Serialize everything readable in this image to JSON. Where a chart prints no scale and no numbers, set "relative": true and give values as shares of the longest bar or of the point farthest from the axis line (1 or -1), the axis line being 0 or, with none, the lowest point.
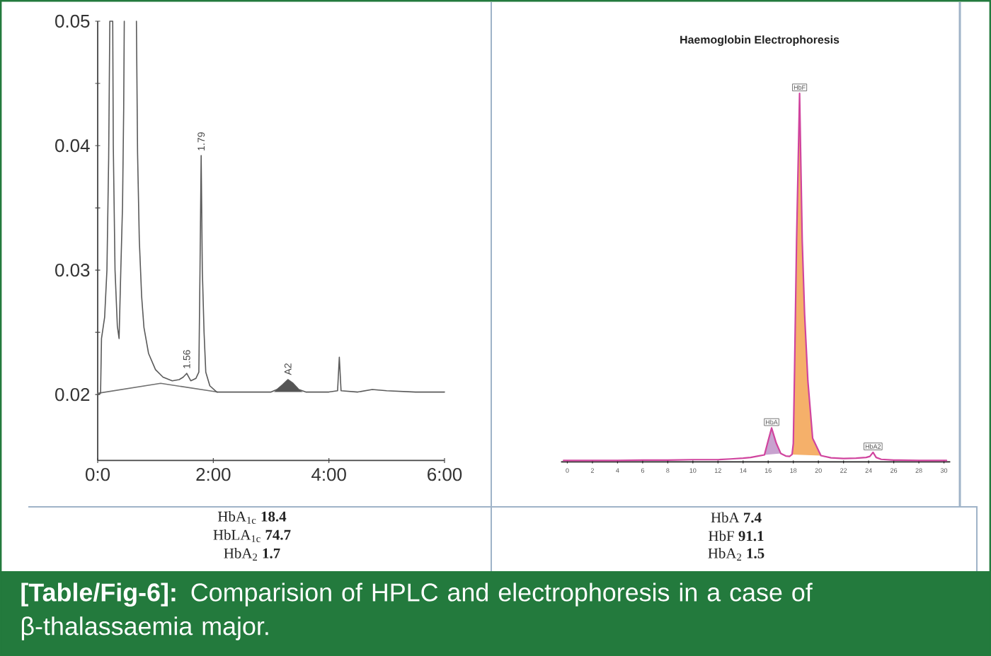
{
  "chart_data": [
    {
      "type": "line",
      "xlim": [
        0,
        6
      ],
      "xticks": [
        {
          "value": 0,
          "label": "0:0"
        },
        {
          "value": 2,
          "label": "2:00"
        },
        {
          "value": 4,
          "label": "4:00"
        },
        {
          "value": 6,
          "label": "6:00"
        }
      ],
      "ylim": [
        0.0147,
        0.05
      ],
      "yticks": [
        0.02,
        {
          "value": 0.025,
          "label": null
        },
        0.03,
        {
          "value": 0.035,
          "label": null
        },
        0.04,
        {
          "value": 0.045,
          "label": null
        },
        0.05
      ],
      "series": [
        {
          "type": "area",
          "color": "#555555",
          "x": [
            3.05,
            3.1,
            3.2,
            3.29,
            3.38,
            3.48,
            3.55
          ],
          "values": [
            0.0202,
            0.0204,
            0.0208,
            0.0212,
            0.0209,
            0.0204,
            0.0202
          ]
        },
        {
          "type": "line",
          "color": "#5a5a5a",
          "x": [
            0.0,
            0.05,
            0.066,
            0.12,
            0.16,
            0.19,
            0.21,
            0.26,
            0.27,
            0.3,
            0.34,
            0.37,
            0.4,
            0.43,
            0.45,
            0.46,
            0.57,
            0.67,
            0.69,
            0.72,
            0.76,
            0.8,
            0.88,
            1.0,
            1.13,
            1.29,
            1.41,
            1.48,
            1.54,
            1.61,
            1.7,
            1.75,
            1.77,
            1.79,
            1.81,
            1.84,
            1.87,
            1.94,
            2.06,
            2.5,
            3.0,
            3.1,
            3.2,
            3.29,
            3.38,
            3.48,
            3.6,
            4.0,
            4.15,
            4.18,
            4.21,
            4.5,
            4.75,
            5.0,
            5.5,
            6.0
          ],
          "values": [
            0.02,
            0.0201,
            0.0245,
            0.0262,
            0.03,
            0.039,
            0.05,
            0.05,
            0.04,
            0.03,
            0.0255,
            0.0245,
            0.03,
            0.0352,
            0.043,
            0.05,
            null,
            0.05,
            0.0394,
            0.0324,
            0.0279,
            0.0254,
            0.0233,
            0.022,
            0.0214,
            0.0211,
            0.0212,
            0.0214,
            0.0217,
            0.0211,
            0.0213,
            0.0218,
            0.03,
            0.0392,
            0.03,
            0.025,
            0.0218,
            0.0207,
            0.0202,
            0.0202,
            0.0202,
            0.0204,
            0.0208,
            0.0212,
            0.0209,
            0.0204,
            0.0202,
            0.0202,
            0.0203,
            0.023,
            0.0203,
            0.0202,
            0.0204,
            0.0203,
            0.0202,
            0.0202
          ]
        },
        {
          "type": "line",
          "color": "#707070",
          "x": [
            0.0,
            1.09,
            2.07
          ],
          "values": [
            0.0201,
            0.0209,
            0.0202
          ]
        }
      ],
      "annotations": [
        {
          "text": "1.56",
          "x": 1.54,
          "y": 0.0217
        },
        {
          "text": "1.79",
          "x": 1.79,
          "y": 0.0392
        },
        {
          "text": "A2",
          "x": 3.29,
          "y": 0.0212
        },
        "HbA$_{1c}$ **18.4**",
        "HbLA$_{1c}$ **74.7**",
        "HbA$_{2}$ **1.7**"
      ]
    },
    {
      "type": "line",
      "title": "Haemoglobin Electrophoresis",
      "relative": true,
      "xlim": [
        -0.5,
        30.5
      ],
      "xticks": [
        0,
        2,
        4,
        6,
        8,
        10,
        12,
        14,
        16,
        18,
        20,
        22,
        24,
        26,
        28,
        30
      ],
      "series": [
        {
          "type": "area",
          "color": "#f5b06a",
          "x": [
            17.9,
            18.0,
            18.1,
            18.26,
            18.5,
            18.71,
            18.9,
            19.16,
            19.54,
            20.2
          ],
          "values": [
            0.02,
            0.05,
            0.25,
            0.6,
            1.0,
            0.6,
            0.4,
            0.22,
            0.064,
            0.017
          ]
        },
        {
          "type": "area",
          "color": "#c8a2cf",
          "x": [
            15.7,
            16.0,
            16.27,
            16.64,
            17.0
          ],
          "values": [
            0.019,
            0.058,
            0.092,
            0.051,
            0.023
          ]
        },
        {
          "type": "line",
          "color": "#d0449e",
          "x": [
            -0.3,
            2,
            4,
            6,
            8,
            10,
            12,
            13,
            14,
            14.6,
            15.2,
            15.7,
            16.0,
            16.27,
            16.64,
            17.0,
            17.4,
            17.7,
            17.9,
            18.0,
            18.1,
            18.26,
            18.5,
            18.71,
            18.9,
            19.16,
            19.54,
            20.2,
            21,
            22,
            23,
            23.8,
            24.1,
            24.35,
            24.6,
            25,
            26,
            28,
            30.2
          ],
          "values": [
            0.004,
            0.004,
            0.004,
            0.005,
            0.005,
            0.006,
            0.006,
            0.008,
            0.01,
            0.012,
            0.016,
            0.019,
            0.058,
            0.092,
            0.051,
            0.023,
            0.016,
            0.015,
            0.02,
            0.05,
            0.25,
            0.6,
            1.0,
            0.6,
            0.4,
            0.22,
            0.064,
            0.017,
            0.011,
            0.009,
            0.01,
            0.012,
            0.015,
            0.026,
            0.012,
            0.007,
            0.005,
            0.004,
            0.004
          ]
        }
      ],
      "annotations": [
        {
          "text": "HbF",
          "x": 18.5,
          "y": 1.0
        },
        {
          "text": "HbA",
          "x": 16.27,
          "y": 0.092
        },
        {
          "text": "HbA2",
          "x": 24.35,
          "y": 0.026
        },
        "HbA **7.4**",
        "HbF **91.1**",
        "HbA$_{2}$ **1.5**",
        "**[Table/Fig-6]:** Comparision of HPLC and electrophoresis in a case of β-thalassaemia major."
      ]
    }
  ]
}
